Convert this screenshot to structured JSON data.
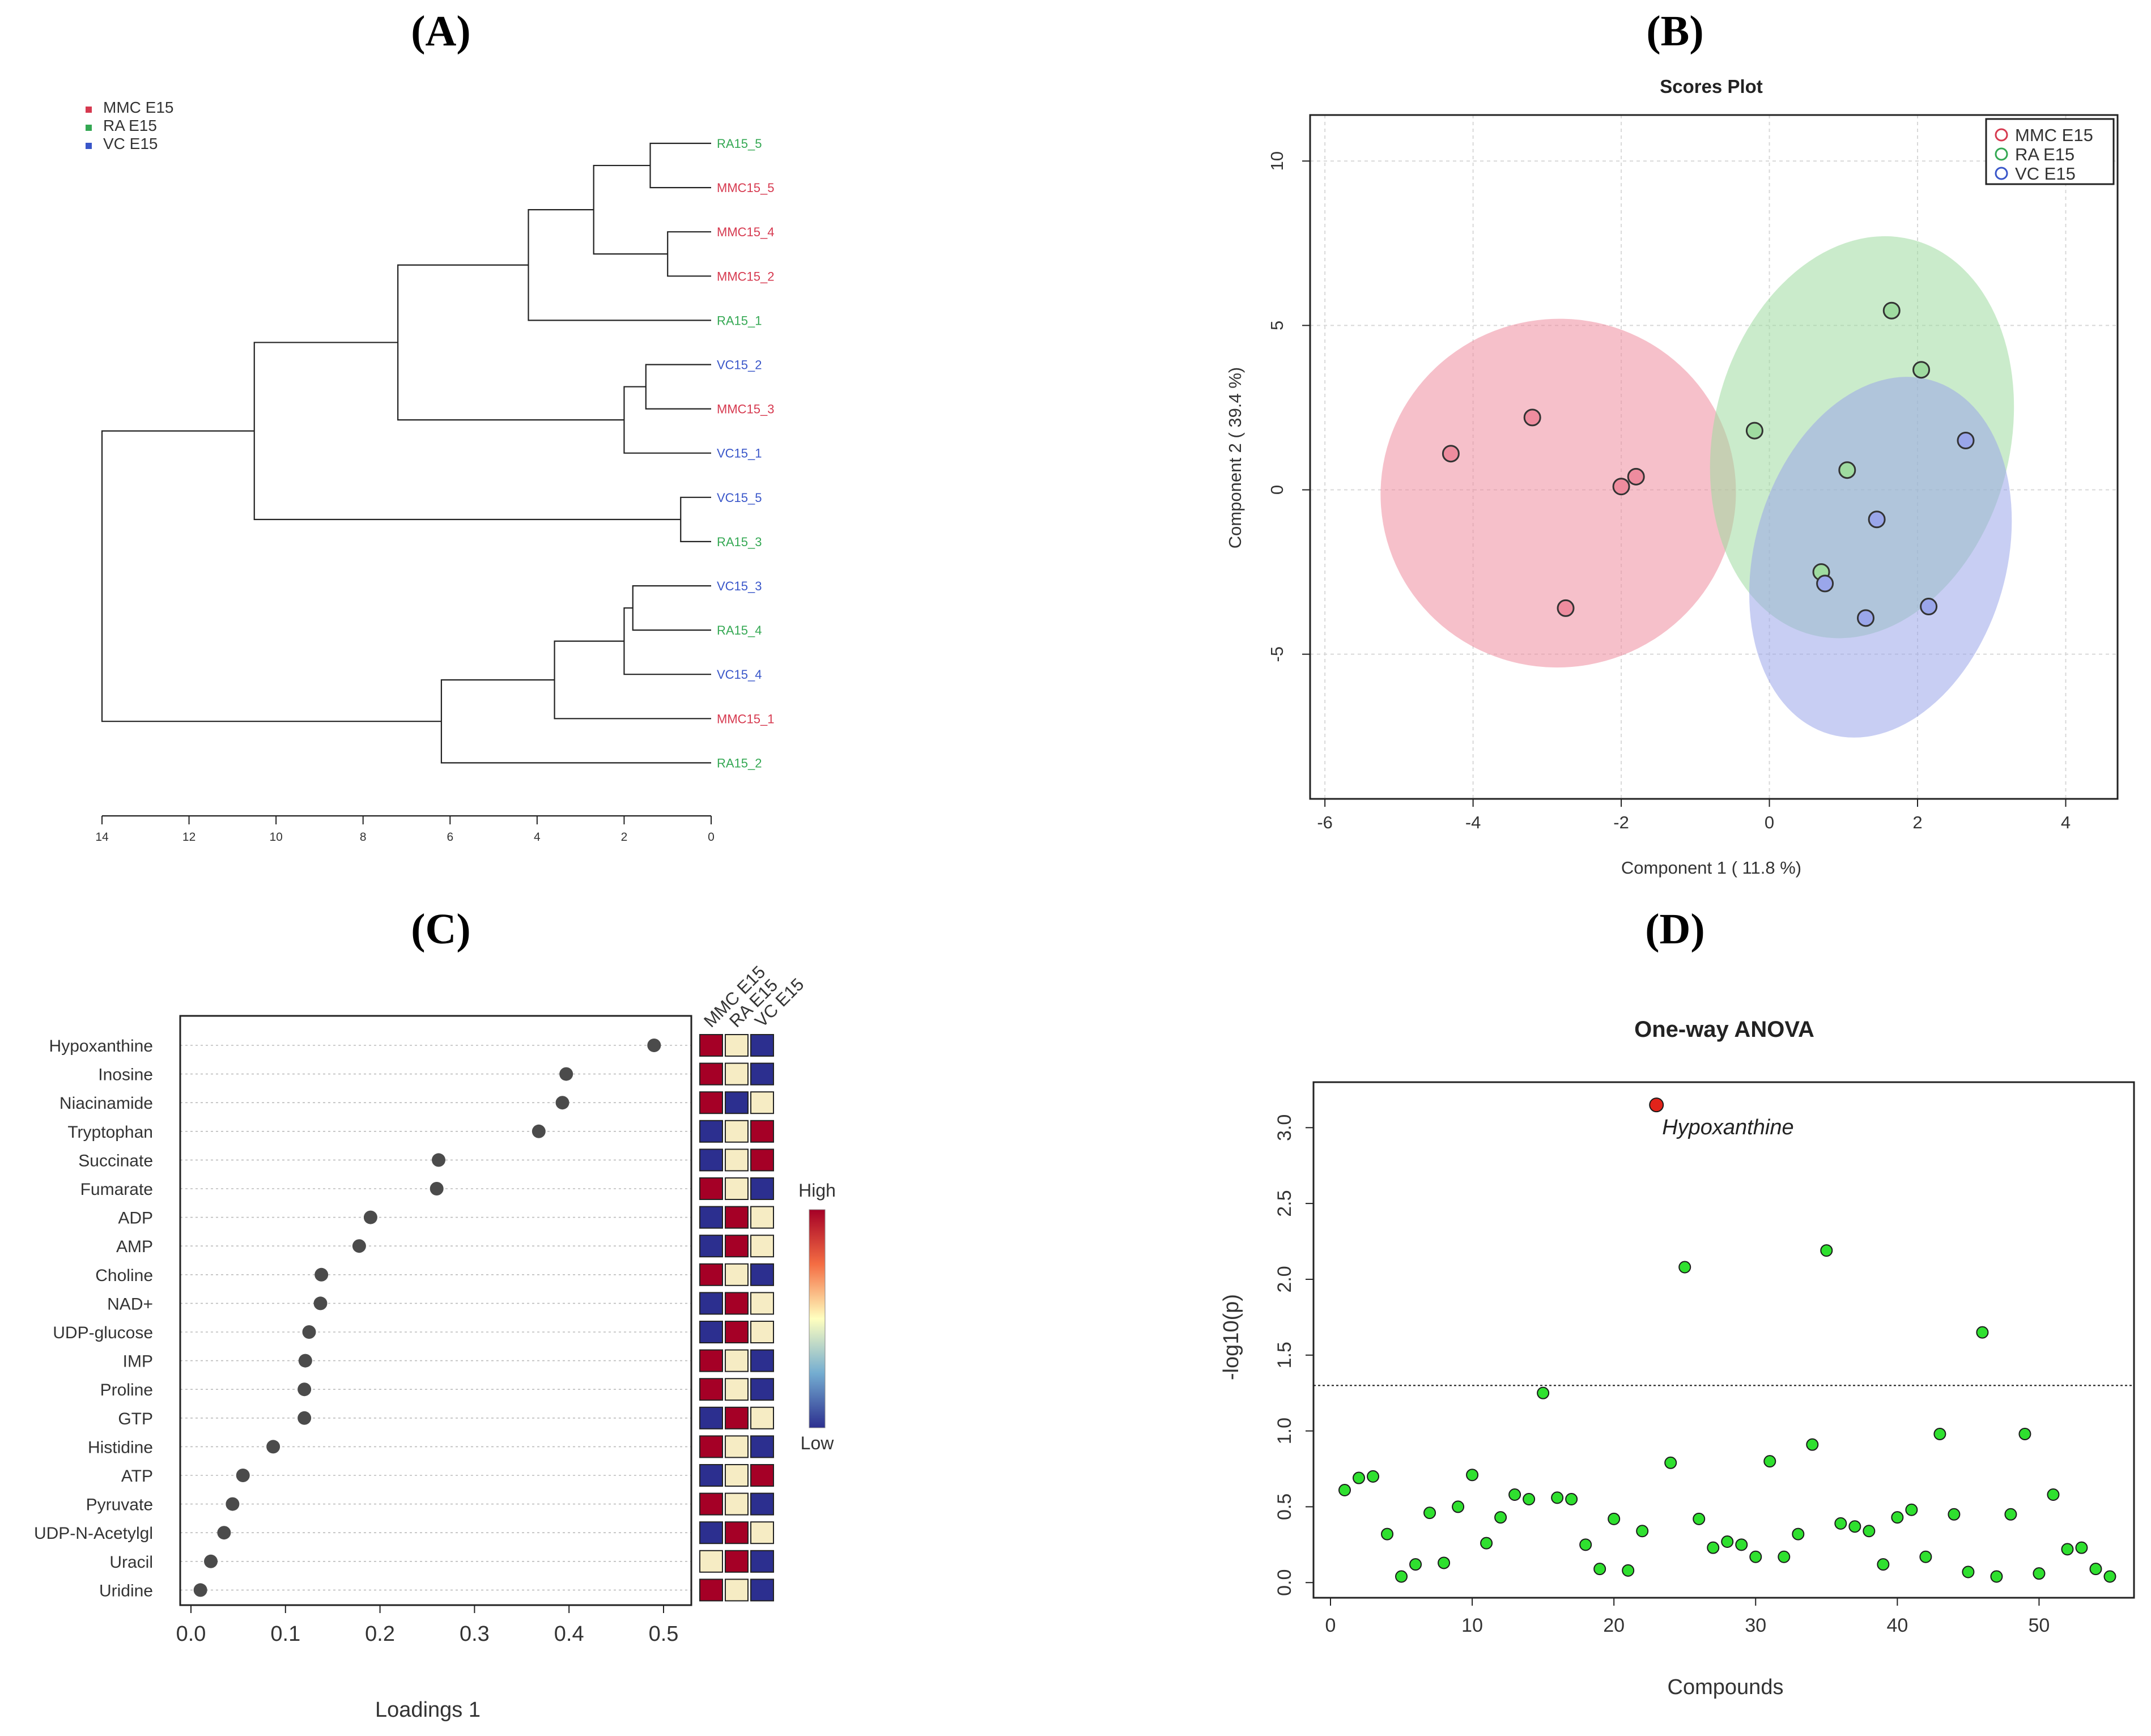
{
  "colors": {
    "mmc": "#d6394f",
    "ra": "#34a853",
    "vc": "#3956c9",
    "mmc_fill": "#ee8c9e",
    "ra_fill": "#9fdba0",
    "vc_fill": "#9aa6ea",
    "heat_high": "#a50026",
    "heat_mid": "#f6ecc4",
    "heat_low": "#2c2f8f",
    "green_point": "#2fe02f",
    "red_point": "#e2231a",
    "dot": "#4b4b4b"
  },
  "panels": {
    "A": "(A)",
    "B": "(B)",
    "C": "(C)",
    "D": "(D)"
  },
  "chart_data": [
    {
      "panel": "A",
      "type": "dendrogram",
      "legend": [
        {
          "label": "MMC E15",
          "color": "mmc"
        },
        {
          "label": "RA E15",
          "color": "ra"
        },
        {
          "label": "VC E15",
          "color": "vc"
        }
      ],
      "leaves": [
        {
          "label": "RA15_5",
          "group": "ra"
        },
        {
          "label": "MMC15_5",
          "group": "mmc"
        },
        {
          "label": "MMC15_4",
          "group": "mmc"
        },
        {
          "label": "MMC15_2",
          "group": "mmc"
        },
        {
          "label": "RA15_1",
          "group": "ra"
        },
        {
          "label": "VC15_2",
          "group": "vc"
        },
        {
          "label": "MMC15_3",
          "group": "mmc"
        },
        {
          "label": "VC15_1",
          "group": "vc"
        },
        {
          "label": "VC15_5",
          "group": "vc"
        },
        {
          "label": "RA15_3",
          "group": "ra"
        },
        {
          "label": "VC15_3",
          "group": "vc"
        },
        {
          "label": "RA15_4",
          "group": "ra"
        },
        {
          "label": "VC15_4",
          "group": "vc"
        },
        {
          "label": "MMC15_1",
          "group": "mmc"
        },
        {
          "label": "RA15_2",
          "group": "ra"
        }
      ],
      "merges": [
        {
          "a": 0,
          "b": 1,
          "height": 1.4
        },
        {
          "a": 2,
          "b": 3,
          "height": 1.0
        },
        {
          "a": 15,
          "b": 16,
          "height": 2.7
        },
        {
          "a": 17,
          "b": 4,
          "height": 4.2
        },
        {
          "a": 5,
          "b": 6,
          "height": 1.5
        },
        {
          "a": 19,
          "b": 7,
          "height": 2.0
        },
        {
          "a": 18,
          "b": 20,
          "height": 7.2
        },
        {
          "a": 8,
          "b": 9,
          "height": 0.7
        },
        {
          "a": 21,
          "b": 22,
          "height": 10.5
        },
        {
          "a": 10,
          "b": 11,
          "height": 1.8
        },
        {
          "a": 24,
          "b": 12,
          "height": 2.0
        },
        {
          "a": 25,
          "b": 13,
          "height": 3.6
        },
        {
          "a": 26,
          "b": 14,
          "height": 6.2
        },
        {
          "a": 23,
          "b": 27,
          "height": 14.0
        }
      ],
      "axis_ticks": [
        14,
        12,
        10,
        8,
        6,
        4,
        2,
        0
      ],
      "xlim": [
        14,
        0
      ]
    },
    {
      "panel": "B",
      "type": "scatter",
      "title": "Scores Plot",
      "xlabel": "Component 1 ( 11.8 %)",
      "ylabel": "Component 2 ( 39.4 %)",
      "xlim": [
        -6.2,
        4.7
      ],
      "ylim": [
        -9.4,
        11.4
      ],
      "xticks": [
        -6,
        -4,
        -2,
        0,
        2,
        4
      ],
      "yticks": [
        10,
        5,
        0,
        -5
      ],
      "legend": [
        "MMC E15",
        "RA E15",
        "VC E15"
      ],
      "series": [
        {
          "name": "MMC E15",
          "group": "mmc",
          "points": [
            [
              -4.3,
              1.1
            ],
            [
              -3.2,
              2.2
            ],
            [
              -2.0,
              0.1
            ],
            [
              -1.8,
              0.4
            ],
            [
              -2.75,
              -3.6
            ]
          ],
          "ellipse": {
            "cx": -2.85,
            "cy": -0.1,
            "rx": 2.4,
            "ry": 5.3,
            "angle": 10
          }
        },
        {
          "name": "RA E15",
          "group": "ra",
          "points": [
            [
              -0.2,
              1.8
            ],
            [
              1.65,
              5.45
            ],
            [
              2.05,
              3.65
            ],
            [
              1.05,
              0.6
            ],
            [
              0.7,
              -2.5
            ]
          ],
          "ellipse": {
            "cx": 1.25,
            "cy": 1.6,
            "rx": 2.0,
            "ry": 6.2,
            "angle": -14
          }
        },
        {
          "name": "VC E15",
          "group": "vc",
          "points": [
            [
              2.65,
              1.5
            ],
            [
              1.45,
              -0.9
            ],
            [
              0.75,
              -2.85
            ],
            [
              1.3,
              -3.9
            ],
            [
              2.15,
              -3.55
            ]
          ],
          "ellipse": {
            "cx": 1.5,
            "cy": -2.05,
            "rx": 1.7,
            "ry": 5.6,
            "angle": -16
          }
        }
      ]
    },
    {
      "panel": "C",
      "type": "dotplot",
      "xlabel": "Loadings 1",
      "xlim": [
        0,
        0.5
      ],
      "xticks": [
        0.0,
        0.1,
        0.2,
        0.3,
        0.4,
        0.5
      ],
      "heat_columns": [
        "MMC E15",
        "RA E15",
        "VC E15"
      ],
      "colorbar": {
        "high": "High",
        "low": "Low"
      },
      "items": [
        {
          "label": "Hypoxanthine",
          "value": 0.49,
          "heat": [
            "high",
            "mid",
            "low"
          ]
        },
        {
          "label": "Inosine",
          "value": 0.397,
          "heat": [
            "high",
            "mid",
            "low"
          ]
        },
        {
          "label": "Niacinamide",
          "value": 0.393,
          "heat": [
            "high",
            "low",
            "mid"
          ]
        },
        {
          "label": "Tryptophan",
          "value": 0.368,
          "heat": [
            "low",
            "mid",
            "high"
          ]
        },
        {
          "label": "Succinate",
          "value": 0.262,
          "heat": [
            "low",
            "mid",
            "high"
          ]
        },
        {
          "label": "Fumarate",
          "value": 0.26,
          "heat": [
            "high",
            "mid",
            "low"
          ]
        },
        {
          "label": "ADP",
          "value": 0.19,
          "heat": [
            "low",
            "high",
            "mid"
          ]
        },
        {
          "label": "AMP",
          "value": 0.178,
          "heat": [
            "low",
            "high",
            "mid"
          ]
        },
        {
          "label": "Choline",
          "value": 0.138,
          "heat": [
            "high",
            "mid",
            "low"
          ]
        },
        {
          "label": "NAD+",
          "value": 0.137,
          "heat": [
            "low",
            "high",
            "mid"
          ]
        },
        {
          "label": "UDP-glucose",
          "value": 0.125,
          "heat": [
            "low",
            "high",
            "mid"
          ]
        },
        {
          "label": "IMP",
          "value": 0.121,
          "heat": [
            "high",
            "mid",
            "low"
          ]
        },
        {
          "label": "Proline",
          "value": 0.12,
          "heat": [
            "high",
            "mid",
            "low"
          ]
        },
        {
          "label": "GTP",
          "value": 0.12,
          "heat": [
            "low",
            "high",
            "mid"
          ]
        },
        {
          "label": "Histidine",
          "value": 0.087,
          "heat": [
            "high",
            "mid",
            "low"
          ]
        },
        {
          "label": "ATP",
          "value": 0.055,
          "heat": [
            "low",
            "mid",
            "high"
          ]
        },
        {
          "label": "Pyruvate",
          "value": 0.044,
          "heat": [
            "high",
            "mid",
            "low"
          ]
        },
        {
          "label": "UDP-N-Acetylgl",
          "value": 0.035,
          "heat": [
            "low",
            "high",
            "mid"
          ]
        },
        {
          "label": "Uracil",
          "value": 0.021,
          "heat": [
            "mid",
            "high",
            "low"
          ]
        },
        {
          "label": "Uridine",
          "value": 0.01,
          "heat": [
            "high",
            "mid",
            "low"
          ]
        }
      ]
    },
    {
      "panel": "D",
      "type": "scatter",
      "title": "One-way ANOVA",
      "xlabel": "Compounds",
      "ylabel": "-log10(p)",
      "xlim": [
        -1.2,
        56.7
      ],
      "ylim": [
        -0.1,
        3.3
      ],
      "xticks": [
        0,
        10,
        20,
        30,
        40,
        50
      ],
      "yticks": [
        0.0,
        0.5,
        1.0,
        1.5,
        2.0,
        2.5,
        3.0
      ],
      "threshold": 1.3,
      "highlight": {
        "x": 23,
        "y": 3.15,
        "label": "Hypoxanthine"
      },
      "points": [
        [
          1,
          0.61
        ],
        [
          2,
          0.69
        ],
        [
          3,
          0.7
        ],
        [
          4,
          0.32
        ],
        [
          5,
          0.04
        ],
        [
          6,
          0.12
        ],
        [
          7,
          0.46
        ],
        [
          8,
          0.13
        ],
        [
          9,
          0.5
        ],
        [
          10,
          0.71
        ],
        [
          11,
          0.26
        ],
        [
          12,
          0.43
        ],
        [
          13,
          0.58
        ],
        [
          14,
          0.55
        ],
        [
          15,
          1.25
        ],
        [
          16,
          0.56
        ],
        [
          17,
          0.55
        ],
        [
          18,
          0.25
        ],
        [
          19,
          0.09
        ],
        [
          20,
          0.42
        ],
        [
          21,
          0.08
        ],
        [
          22,
          0.34
        ],
        [
          24,
          0.79
        ],
        [
          25,
          2.08
        ],
        [
          26,
          0.42
        ],
        [
          27,
          0.23
        ],
        [
          28,
          0.27
        ],
        [
          29,
          0.25
        ],
        [
          30,
          0.17
        ],
        [
          31,
          0.8
        ],
        [
          32,
          0.17
        ],
        [
          33,
          0.32
        ],
        [
          34,
          0.91
        ],
        [
          35,
          2.19
        ],
        [
          36,
          0.39
        ],
        [
          37,
          0.37
        ],
        [
          38,
          0.34
        ],
        [
          39,
          0.12
        ],
        [
          40,
          0.43
        ],
        [
          41,
          0.48
        ],
        [
          42,
          0.17
        ],
        [
          43,
          0.98
        ],
        [
          44,
          0.45
        ],
        [
          45,
          0.07
        ],
        [
          46,
          1.65
        ],
        [
          47,
          0.04
        ],
        [
          48,
          0.45
        ],
        [
          49,
          0.98
        ],
        [
          50,
          0.06
        ],
        [
          51,
          0.58
        ],
        [
          52,
          0.22
        ],
        [
          53,
          0.23
        ],
        [
          54,
          0.09
        ],
        [
          55,
          0.04
        ]
      ]
    }
  ]
}
